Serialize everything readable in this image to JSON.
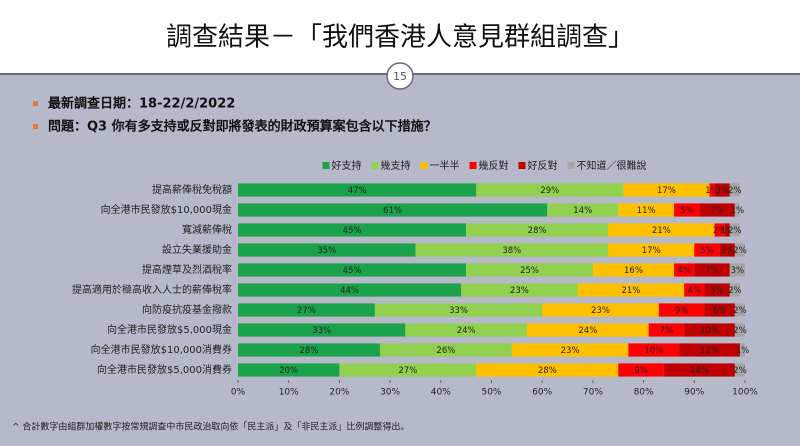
{
  "header": {
    "title": "調查結果－「我們香港人意見群組調查」",
    "page_number": "15"
  },
  "bullets": [
    "最新調查日期：18-22/2/2022",
    "問題：Q3 你有多支持或反對即將發表的財政預算案包含以下措施？"
  ],
  "footnote": "^ 合計數字由組群加權數字按常規調查中市民政治取向依「民主派」及「非民主派」比例調整得出。",
  "chart_data": {
    "type": "bar",
    "orientation": "horizontal",
    "stacked": true,
    "legend": "top",
    "categories": [
      "提高薪俸稅免稅額",
      "向全港市民發放$10,000現金",
      "寬減薪俸稅",
      "設立失業援助金",
      "提高煙草及烈酒稅率",
      "提高適用於極高收入人士的薪俸稅率",
      "向防疫抗疫基金撥款",
      "向全港市民發放$5,000現金",
      "向全港市民發放$10,000消費券",
      "向全港市民發放$5,000消費券"
    ],
    "series": [
      {
        "name": "好支持",
        "color": "#1aa34a",
        "values": [
          47,
          61,
          45,
          35,
          45,
          44,
          27,
          33,
          28,
          20
        ],
        "value_labels": [
          "47%",
          "61%",
          "45%",
          "35%",
          "45%",
          "44%",
          "27%",
          "33%",
          "28%",
          "20%"
        ]
      },
      {
        "name": "幾支持",
        "color": "#92d050",
        "values": [
          29,
          14,
          28,
          38,
          25,
          23,
          33,
          24,
          26,
          27
        ],
        "value_labels": [
          "29%",
          "14%",
          "28%",
          "38%",
          "25%",
          "23%",
          "33%",
          "24%",
          "26%",
          "27%"
        ]
      },
      {
        "name": "一半半",
        "color": "#ffc000",
        "values": [
          17,
          11,
          21,
          17,
          16,
          21,
          23,
          24,
          23,
          28
        ],
        "value_labels": [
          "17%",
          "11%",
          "21%",
          "17%",
          "16%",
          "21%",
          "23%",
          "24%",
          "23%",
          "28%"
        ]
      },
      {
        "name": "幾反對",
        "color": "#ff0000",
        "values": [
          1,
          5,
          2,
          5,
          4,
          4,
          9,
          7,
          10,
          9
        ],
        "value_labels": [
          "1%",
          "5%",
          "2%",
          "5%",
          "4%",
          "4%",
          "9%",
          "7%",
          "10%",
          "9%"
        ]
      },
      {
        "name": "好反對",
        "color": "#c00000",
        "values": [
          3,
          7,
          1,
          3,
          7,
          5,
          6,
          10,
          12,
          14
        ],
        "value_labels": [
          "3%",
          "7%",
          "1%",
          "3%",
          "7%",
          "5%",
          "6%",
          "10%",
          "12%",
          "14%"
        ]
      },
      {
        "name": "不知道／很難說",
        "color": "#a6a6a6",
        "values": [
          2,
          1,
          2,
          2,
          3,
          2,
          2,
          2,
          1,
          2
        ],
        "value_labels": [
          "2%",
          "1%",
          "2%",
          "2%",
          "3%",
          "2%",
          "2%",
          "2%",
          "1%",
          "2%"
        ]
      }
    ],
    "xlim": [
      0,
      100
    ],
    "xticks": [
      {
        "value": 0,
        "label": "0%"
      },
      {
        "value": 10,
        "label": "10%"
      },
      {
        "value": 20,
        "label": "20%"
      },
      {
        "value": 30,
        "label": "30%"
      },
      {
        "value": 40,
        "label": "40%"
      },
      {
        "value": 50,
        "label": "50%"
      },
      {
        "value": 60,
        "label": "60%"
      },
      {
        "value": 70,
        "label": "70%"
      },
      {
        "value": 80,
        "label": "80%"
      },
      {
        "value": 90,
        "label": "90%"
      },
      {
        "value": 100,
        "label": "100%"
      }
    ]
  }
}
